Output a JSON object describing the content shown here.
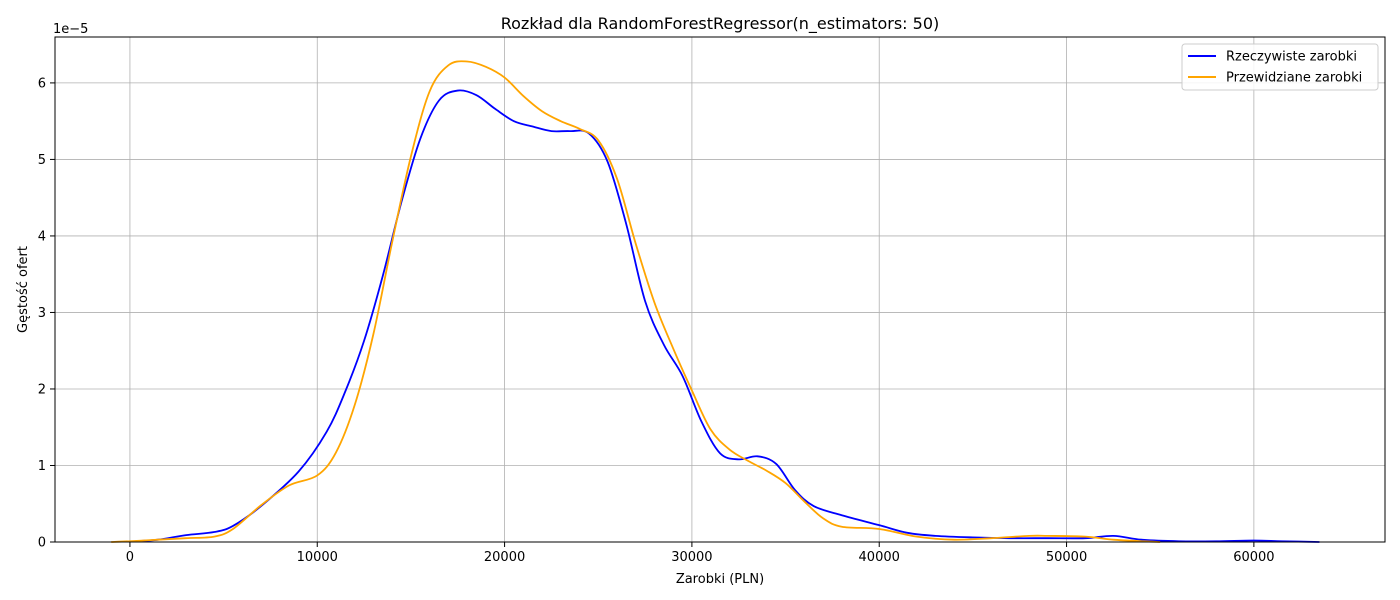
{
  "chart_data": {
    "type": "line",
    "title": "Rozkład dla RandomForestRegressor(n_estimators: 50)",
    "xlabel": "Zarobki (PLN)",
    "ylabel": "Gęstość ofert",
    "y_offset_label": "1e−5",
    "xlim": [
      -4000,
      67000
    ],
    "ylim": [
      0,
      6.6
    ],
    "x_ticks": [
      0,
      10000,
      20000,
      30000,
      40000,
      50000,
      60000
    ],
    "x_tick_labels": [
      "0",
      "10000",
      "20000",
      "30000",
      "40000",
      "50000",
      "60000"
    ],
    "y_ticks": [
      0,
      1,
      2,
      3,
      4,
      5,
      6
    ],
    "y_tick_labels": [
      "0",
      "1",
      "2",
      "3",
      "4",
      "5",
      "6"
    ],
    "grid": true,
    "legend_position": "top-right",
    "series": [
      {
        "name": "Rzeczywiste zarobki",
        "color": "#0000ff",
        "x": [
          300,
          1500,
          3000,
          4500,
          5500,
          7000,
          9000,
          10500,
          11500,
          12500,
          13500,
          14500,
          15500,
          16500,
          17500,
          18500,
          19500,
          20500,
          21500,
          22500,
          23500,
          24500,
          25500,
          26500,
          27500,
          28500,
          29500,
          30500,
          31500,
          32500,
          33500,
          34500,
          35500,
          36500,
          38000,
          40000,
          41500,
          43000,
          45000,
          47000,
          49000,
          51000,
          52500,
          54000,
          56000,
          58000,
          60000,
          61500,
          63500
        ],
        "y": [
          0.01,
          0.03,
          0.09,
          0.13,
          0.21,
          0.47,
          0.92,
          1.44,
          1.97,
          2.63,
          3.48,
          4.45,
          5.27,
          5.77,
          5.9,
          5.84,
          5.66,
          5.5,
          5.43,
          5.37,
          5.37,
          5.34,
          4.97,
          4.15,
          3.15,
          2.58,
          2.17,
          1.58,
          1.16,
          1.08,
          1.12,
          1.02,
          0.68,
          0.47,
          0.35,
          0.22,
          0.12,
          0.08,
          0.06,
          0.05,
          0.05,
          0.05,
          0.08,
          0.03,
          0.01,
          0.01,
          0.02,
          0.01,
          0.0
        ]
      },
      {
        "name": "Przewidziane zarobki",
        "color": "#ffa500",
        "x": [
          -1000,
          0,
          1500,
          3000,
          4500,
          5500,
          7000,
          8500,
          10000,
          11000,
          12000,
          13000,
          14000,
          15000,
          16000,
          17000,
          18000,
          19000,
          20000,
          21000,
          22000,
          23000,
          24000,
          25000,
          26000,
          27000,
          28000,
          29000,
          30000,
          31000,
          32000,
          33000,
          34000,
          35000,
          36000,
          37000,
          38000,
          40000,
          42000,
          44000,
          46000,
          48000,
          49000,
          51000,
          52500,
          54000,
          55000
        ],
        "y": [
          0.0,
          0.01,
          0.03,
          0.05,
          0.07,
          0.17,
          0.48,
          0.74,
          0.87,
          1.17,
          1.79,
          2.72,
          3.92,
          5.04,
          5.89,
          6.23,
          6.28,
          6.21,
          6.07,
          5.83,
          5.63,
          5.5,
          5.4,
          5.25,
          4.75,
          3.9,
          3.13,
          2.53,
          1.98,
          1.47,
          1.21,
          1.06,
          0.93,
          0.77,
          0.53,
          0.31,
          0.2,
          0.17,
          0.07,
          0.03,
          0.05,
          0.08,
          0.08,
          0.07,
          0.03,
          0.01,
          0.0
        ]
      }
    ]
  }
}
